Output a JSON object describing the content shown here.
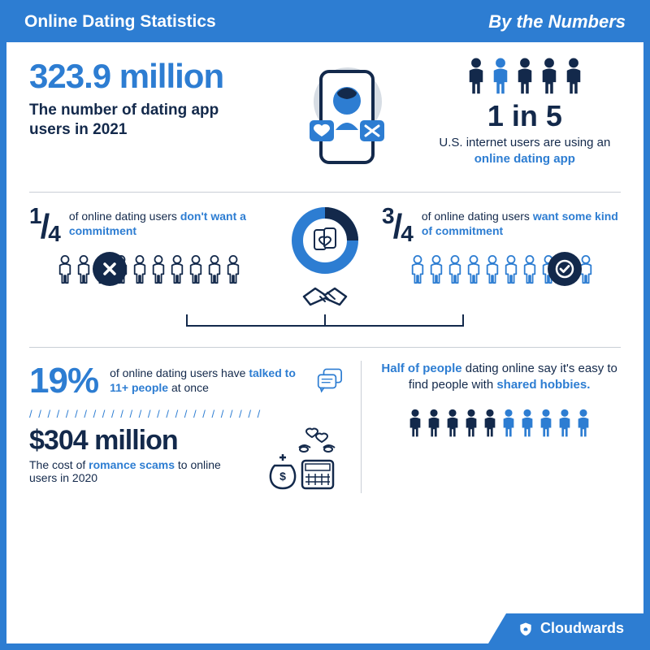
{
  "colors": {
    "brand": "#2d7dd2",
    "dark": "#13294b",
    "border": "#c9cfd6",
    "bg": "#ffffff",
    "light_person": "#6ba5df"
  },
  "header": {
    "title": "Online Dating Statistics",
    "subtitle": "By the Numbers"
  },
  "stat_users": {
    "value": "323.9 million",
    "desc": "The number of dating app users in 2021"
  },
  "stat_1in5": {
    "value": "1 in 5",
    "desc_pre": "U.S. internet users are using an ",
    "desc_hl": "online dating app",
    "people_total": 5,
    "highlight_index": 1
  },
  "commitment": {
    "no": {
      "frac": "1/4",
      "text_pre": "of online dating users ",
      "text_hl": "don't want a commitment",
      "icon_count": 10
    },
    "yes": {
      "frac": "3/4",
      "text_pre": "of online dating users ",
      "text_hl": "want some kind of commitment",
      "icon_count": 10
    }
  },
  "talked": {
    "value": "19%",
    "text_pre": "of online dating users have ",
    "text_hl": "talked to 11+ people",
    "text_post": " at once"
  },
  "scams": {
    "value": "$304 million",
    "text_pre": "The cost of ",
    "text_hl": "romance scams",
    "text_post": " to online users in 2020"
  },
  "half": {
    "text_hl1": "Half of people",
    "text_mid": " dating online say it's easy to find people with ",
    "text_hl2": "shared hobbies.",
    "people_total": 10,
    "highlight_count": 5
  },
  "footer": {
    "brand": "Cloudwards"
  }
}
